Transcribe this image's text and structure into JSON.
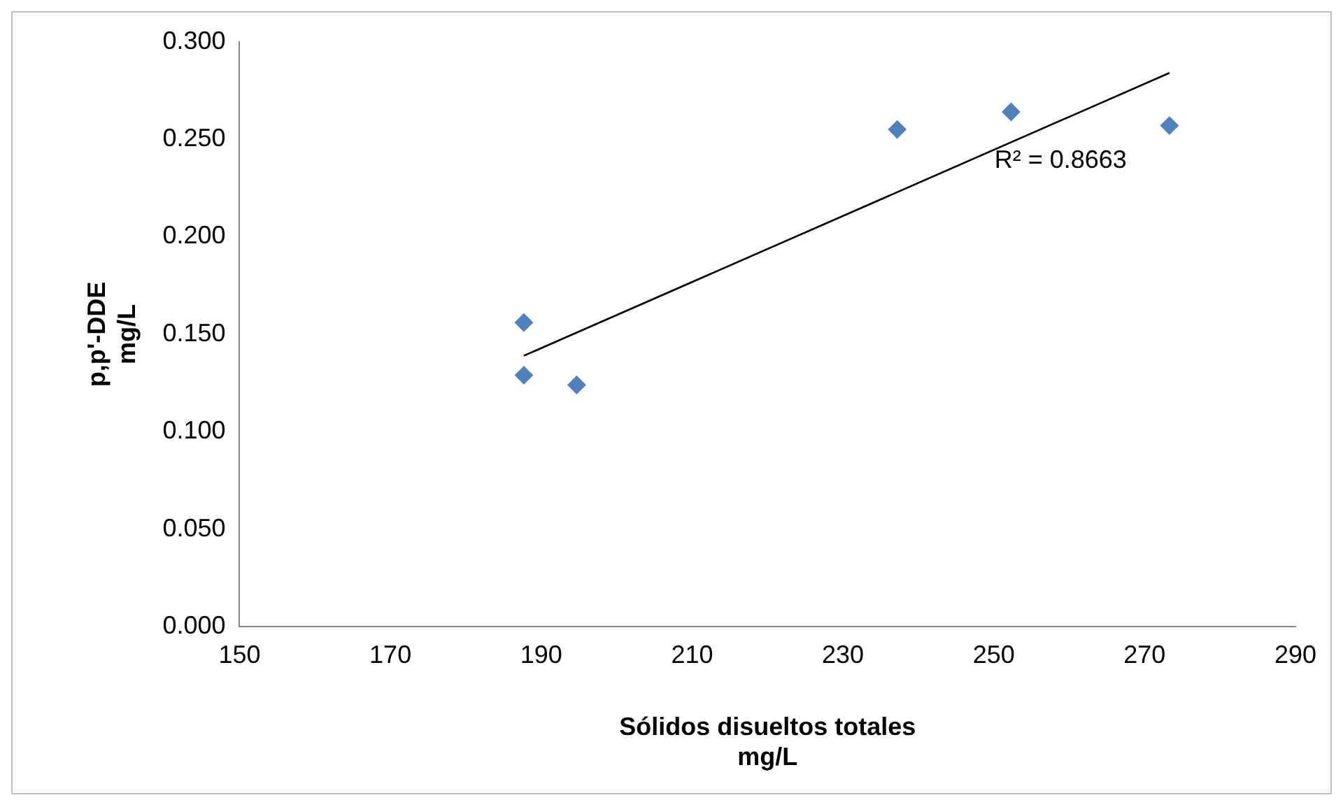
{
  "chart_data": {
    "type": "scatter",
    "xlabel": "Sólidos disueltos totales\nmg/L",
    "ylabel": "p,p'-DDE\nmg/L",
    "series": [
      {
        "color": "#4f81bd",
        "x": [
          187.7,
          187.7,
          194.7,
          237.2,
          252.3,
          273.3
        ],
        "values": [
          0.156,
          0.129,
          0.124,
          0.255,
          0.264,
          0.257
        ]
      },
      {
        "type": "line",
        "marker": "none",
        "color": "#000000",
        "x": [
          187.7,
          273.3
        ],
        "values": [
          0.139,
          0.284
        ]
      }
    ],
    "annotations": [
      "R² = 0.8663"
    ],
    "xlim": [
      150,
      290
    ],
    "xticks": [
      150,
      170,
      190,
      210,
      230,
      250,
      270,
      290
    ],
    "ylim": [
      0,
      0.3
    ],
    "yticks": [
      {
        "value": 0,
        "label": "0.000"
      },
      {
        "value": 0.05,
        "label": "0.050"
      },
      {
        "value": 0.1,
        "label": "0.100"
      },
      {
        "value": 0.15,
        "label": "0.150"
      },
      {
        "value": 0.2,
        "label": "0.200"
      },
      {
        "value": 0.25,
        "label": "0.250"
      },
      {
        "value": 0.3,
        "label": "0.300"
      }
    ],
    "grid": false,
    "legend": false,
    "marker": "diamond",
    "line_style": "solid"
  }
}
